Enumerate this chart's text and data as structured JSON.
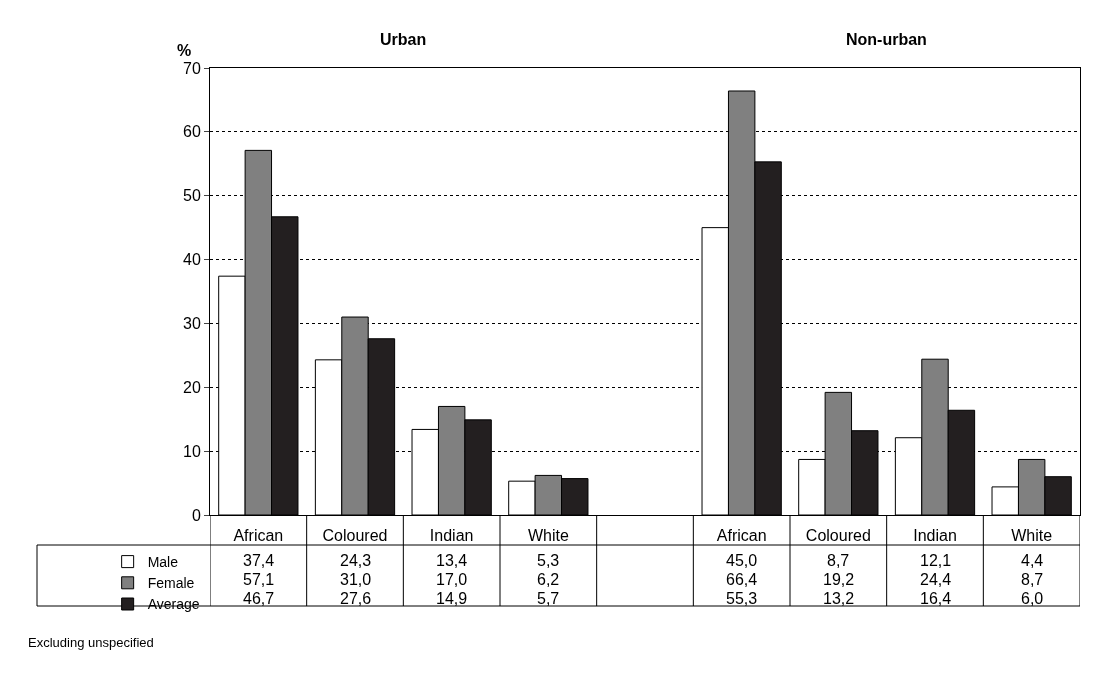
{
  "chart_data": {
    "type": "bar",
    "ylabel": "%",
    "annotations": [
      "Urban",
      "Non-urban",
      "Excluding unspecified"
    ],
    "categories": [
      "African",
      "Coloured",
      "Indian",
      "White",
      null,
      "African",
      "Coloured",
      "Indian",
      "White"
    ],
    "series": [
      {
        "name": "Male",
        "color": "#ffffff",
        "values": [
          37.4,
          24.3,
          13.4,
          5.3,
          null,
          45.0,
          8.7,
          12.1,
          4.4
        ],
        "value_labels": [
          "37,4",
          "24,3",
          "13,4",
          "5,3",
          null,
          "45,0",
          "8,7",
          "12,1",
          "4,4"
        ]
      },
      {
        "name": "Female",
        "color": "#808080",
        "values": [
          57.1,
          31.0,
          17.0,
          6.2,
          null,
          66.4,
          19.2,
          24.4,
          8.7
        ],
        "value_labels": [
          "57,1",
          "31,0",
          "17,0",
          "6,2",
          null,
          "66,4",
          "19,2",
          "24,4",
          "8,7"
        ]
      },
      {
        "name": "Average",
        "color": "#231f20",
        "values": [
          46.7,
          27.6,
          14.9,
          5.7,
          null,
          55.3,
          13.2,
          16.4,
          6.0
        ],
        "value_labels": [
          "46,7",
          "27,6",
          "14,9",
          "5,7",
          null,
          "55,3",
          "13,2",
          "16,4",
          "6,0"
        ]
      }
    ],
    "ylim": [
      0,
      70
    ],
    "yticks": [
      0,
      10,
      20,
      30,
      40,
      50,
      60,
      70
    ],
    "grid": "y",
    "legend": "bottom left"
  }
}
